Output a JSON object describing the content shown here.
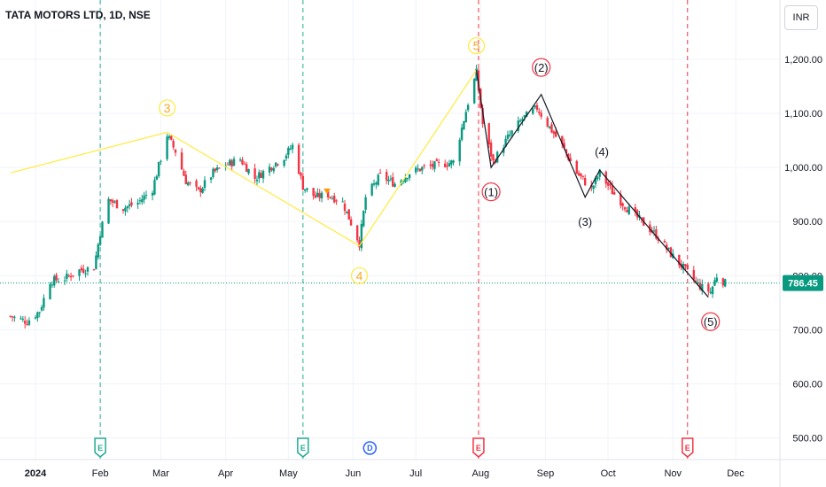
{
  "header": {
    "symbol_title": "TATA MOTORS LTD, 1D, NSE",
    "currency": "INR"
  },
  "chart_data": {
    "type": "candlestick",
    "ylim": [
      460,
      1290
    ],
    "y_ticks": [
      500,
      600,
      700,
      800,
      900,
      1000,
      1100,
      1200
    ],
    "y_tick_labels": [
      "500.00",
      "600.00",
      "700.00",
      "800.00",
      "900.00",
      "1,000.00",
      "1,100.00",
      "1,200.00"
    ],
    "x_ticks": [
      {
        "label": "2024",
        "date": "2024-01-01"
      },
      {
        "label": "Feb",
        "date": "2024-02-01"
      },
      {
        "label": "Mar",
        "date": "2024-03-01"
      },
      {
        "label": "Apr",
        "date": "2024-04-01"
      },
      {
        "label": "May",
        "date": "2024-05-01"
      },
      {
        "label": "Jun",
        "date": "2024-06-01"
      },
      {
        "label": "Jul",
        "date": "2024-07-01"
      },
      {
        "label": "Aug",
        "date": "2024-08-01"
      },
      {
        "label": "Sep",
        "date": "2024-09-01"
      },
      {
        "label": "Oct",
        "date": "2024-10-01"
      },
      {
        "label": "Nov",
        "date": "2024-11-01"
      },
      {
        "label": "Dec",
        "date": "2024-12-01"
      }
    ],
    "last_price": 786.45,
    "last_price_label": "786.45",
    "price_path": [
      [
        "2023-12-20",
        725
      ],
      [
        "2023-12-28",
        715
      ],
      [
        "2024-01-03",
        735
      ],
      [
        "2024-01-08",
        790
      ],
      [
        "2024-01-15",
        795
      ],
      [
        "2024-01-22",
        810
      ],
      [
        "2024-01-29",
        815
      ],
      [
        "2024-02-01",
        880
      ],
      [
        "2024-02-05",
        940
      ],
      [
        "2024-02-12",
        925
      ],
      [
        "2024-02-19",
        935
      ],
      [
        "2024-02-26",
        960
      ],
      [
        "2024-03-04",
        1060
      ],
      [
        "2024-03-08",
        1030
      ],
      [
        "2024-03-13",
        975
      ],
      [
        "2024-03-19",
        955
      ],
      [
        "2024-03-26",
        990
      ],
      [
        "2024-04-01",
        1005
      ],
      [
        "2024-04-08",
        1015
      ],
      [
        "2024-04-15",
        980
      ],
      [
        "2024-04-22",
        1000
      ],
      [
        "2024-04-29",
        1020
      ],
      [
        "2024-05-03",
        1040
      ],
      [
        "2024-05-08",
        965
      ],
      [
        "2024-05-14",
        945
      ],
      [
        "2024-05-20",
        950
      ],
      [
        "2024-05-27",
        935
      ],
      [
        "2024-06-04",
        860
      ],
      [
        "2024-06-07",
        945
      ],
      [
        "2024-06-14",
        985
      ],
      [
        "2024-06-21",
        970
      ],
      [
        "2024-06-28",
        990
      ],
      [
        "2024-07-05",
        1000
      ],
      [
        "2024-07-12",
        1005
      ],
      [
        "2024-07-19",
        1010
      ],
      [
        "2024-07-26",
        1120
      ],
      [
        "2024-07-30",
        1175
      ],
      [
        "2024-08-02",
        1080
      ],
      [
        "2024-08-07",
        1010
      ],
      [
        "2024-08-14",
        1055
      ],
      [
        "2024-08-21",
        1090
      ],
      [
        "2024-08-28",
        1110
      ],
      [
        "2024-09-02",
        1080
      ],
      [
        "2024-09-09",
        1040
      ],
      [
        "2024-09-16",
        990
      ],
      [
        "2024-09-23",
        960
      ],
      [
        "2024-09-27",
        990
      ],
      [
        "2024-10-03",
        955
      ],
      [
        "2024-10-10",
        925
      ],
      [
        "2024-10-17",
        900
      ],
      [
        "2024-10-24",
        875
      ],
      [
        "2024-10-31",
        840
      ],
      [
        "2024-11-07",
        810
      ],
      [
        "2024-11-14",
        780
      ],
      [
        "2024-11-19",
        770
      ],
      [
        "2024-11-22",
        800
      ],
      [
        "2024-11-26",
        786
      ]
    ],
    "event_lines": [
      {
        "date": "2024-02-01",
        "color": "#22ab94",
        "marker": "E"
      },
      {
        "date": "2024-05-08",
        "color": "#22ab94",
        "marker": "E"
      },
      {
        "date": "2024-06-09",
        "color": "#2962ff",
        "marker": "D",
        "line": false
      },
      {
        "date": "2024-07-31",
        "color": "#f23645",
        "marker": "E"
      },
      {
        "date": "2024-11-08",
        "color": "#f23645",
        "marker": "E"
      }
    ],
    "yellow_wave": {
      "color": "#ffeb3b",
      "points": [
        [
          "2023-12-20",
          990
        ],
        [
          "2024-03-04",
          1065
        ],
        [
          "2024-06-04",
          855
        ],
        [
          "2024-07-30",
          1180
        ]
      ],
      "labels": [
        {
          "text": "3",
          "date": "2024-03-04",
          "y": 1110
        },
        {
          "text": "4",
          "date": "2024-06-04",
          "y": 800
        },
        {
          "text": "5",
          "date": "2024-07-30",
          "y": 1225
        }
      ]
    },
    "black_wave": {
      "color": "#131722",
      "points": [
        [
          "2024-07-30",
          1180
        ],
        [
          "2024-08-06",
          1000
        ],
        [
          "2024-08-30",
          1135
        ],
        [
          "2024-09-20",
          945
        ],
        [
          "2024-09-27",
          995
        ],
        [
          "2024-11-18",
          760
        ]
      ],
      "labels": [
        {
          "text": "(1)",
          "date": "2024-08-06",
          "y": 955,
          "circle": true
        },
        {
          "text": "(2)",
          "date": "2024-08-30",
          "y": 1185,
          "circle": true
        },
        {
          "text": "(3)",
          "date": "2024-09-20",
          "y": 900,
          "circle": false
        },
        {
          "text": "(4)",
          "date": "2024-09-28",
          "y": 1030,
          "circle": false
        },
        {
          "text": "(5)",
          "date": "2024-11-19",
          "y": 715,
          "circle": true
        }
      ]
    }
  }
}
